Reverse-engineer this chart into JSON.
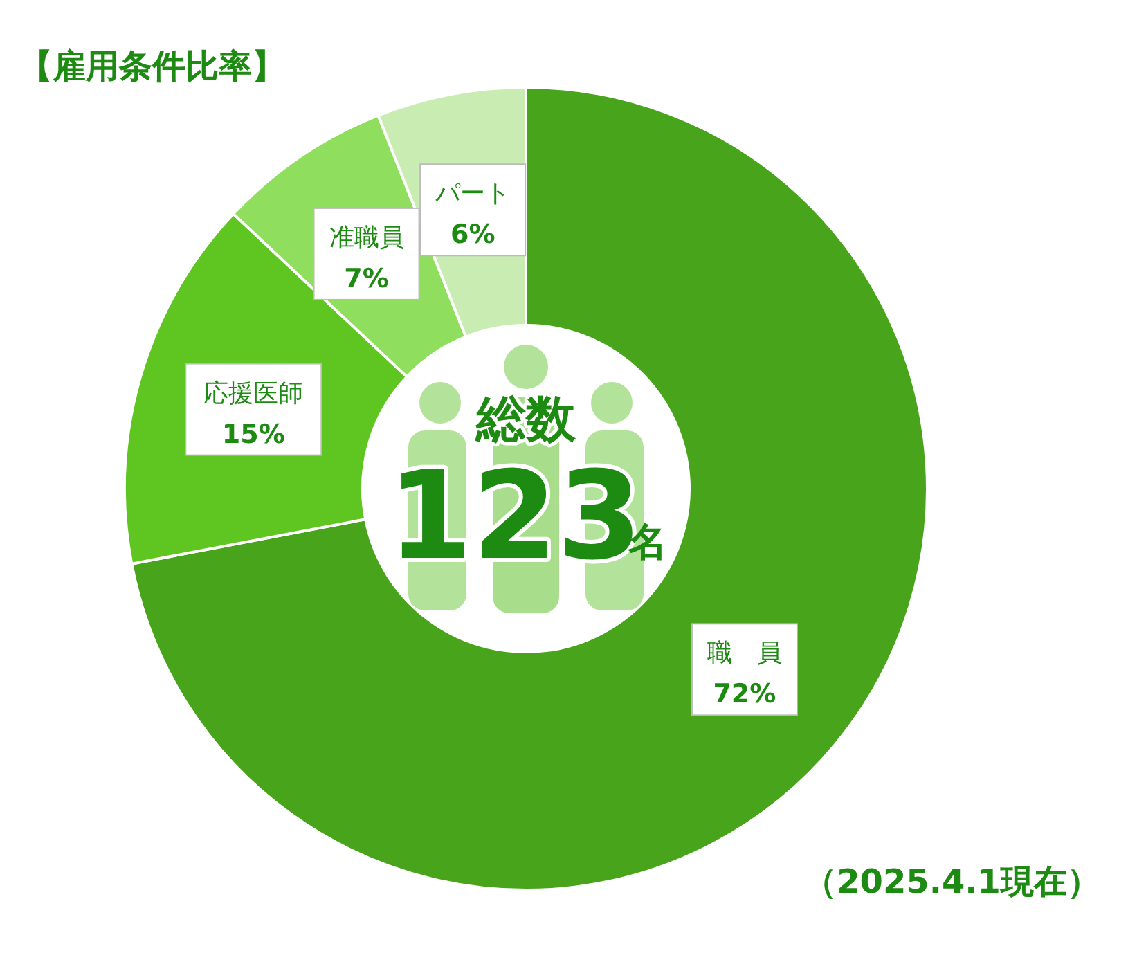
{
  "chart_data": {
    "type": "donut",
    "title": "【雇用条件比率】",
    "categories": [
      "職　員",
      "応援医師",
      "准職員",
      "パート"
    ],
    "values": [
      72,
      15,
      7,
      6
    ],
    "colors": [
      "#48a51b",
      "#5ec521",
      "#8fde5e",
      "#c9ecb2"
    ],
    "value_labels": [
      "72%",
      "15%",
      "7%",
      "6%"
    ],
    "annotations": [
      "総数",
      "123",
      "名",
      "（2025.4.1現在）"
    ]
  }
}
